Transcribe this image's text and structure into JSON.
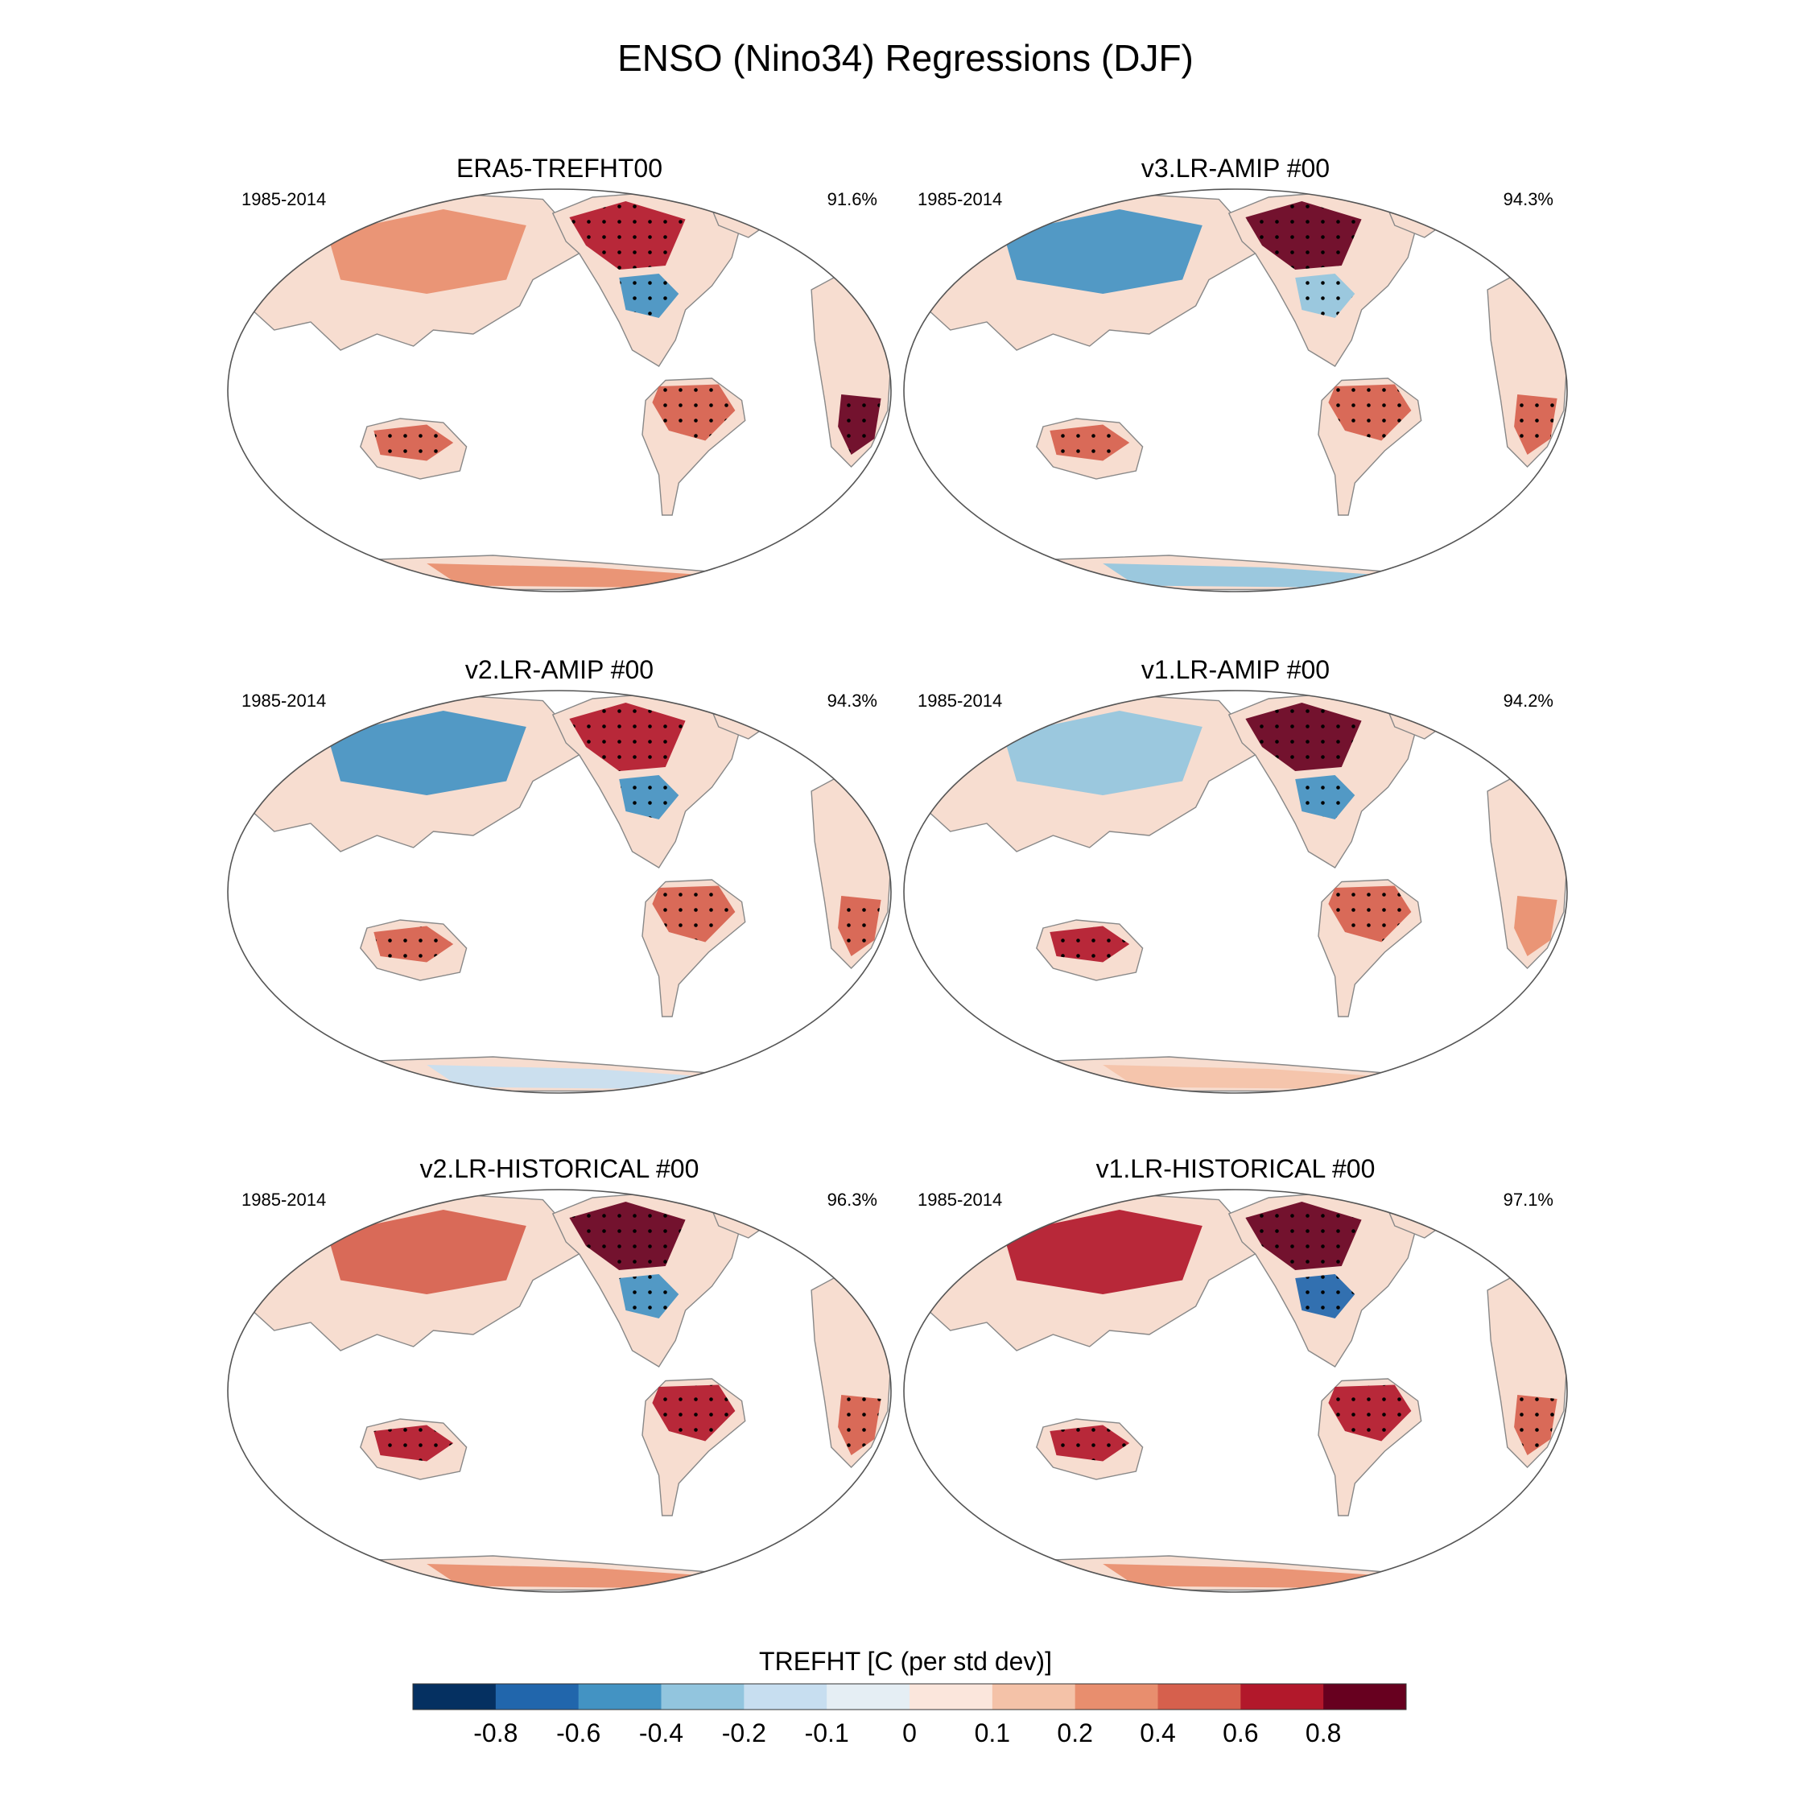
{
  "chart_data": {
    "type": "map",
    "title": "ENSO (Nino34) Regressions (DJF)",
    "projection": "Robinson (Pacific-centered)",
    "panels": [
      {
        "title": "ERA5-TREFHT00",
        "years": "1985-2014",
        "pattern_correlation": "91.6%",
        "regions": [
          {
            "name": "NW North America / Alaska",
            "value": 0.6
          },
          {
            "name": "SE United States",
            "value": -0.6
          },
          {
            "name": "Northern South America",
            "value": 0.4
          },
          {
            "name": "Southeast Africa",
            "value": 0.8
          },
          {
            "name": "Northern Australia",
            "value": 0.4
          },
          {
            "name": "Siberia / Central Asia",
            "value": 0.2
          },
          {
            "name": "Antarctica",
            "value": 0.2
          }
        ]
      },
      {
        "title": "v3.LR-AMIP  #00",
        "years": "1985-2014",
        "pattern_correlation": "94.3%",
        "regions": [
          {
            "name": "NW North America / Alaska",
            "value": 0.8
          },
          {
            "name": "SE United States",
            "value": -0.4
          },
          {
            "name": "Northern South America",
            "value": 0.4
          },
          {
            "name": "Southeast Africa",
            "value": 0.4
          },
          {
            "name": "Northern Australia",
            "value": 0.4
          },
          {
            "name": "Northern Eurasia",
            "value": -0.6
          },
          {
            "name": "Antarctica",
            "value": -0.4
          }
        ]
      },
      {
        "title": "v2.LR-AMIP  #00",
        "years": "1985-2014",
        "pattern_correlation": "94.3%",
        "regions": [
          {
            "name": "NW North America / Alaska",
            "value": 0.6
          },
          {
            "name": "SE United States",
            "value": -0.6
          },
          {
            "name": "Northern South America",
            "value": 0.4
          },
          {
            "name": "Southeast Africa",
            "value": 0.4
          },
          {
            "name": "Northern Australia",
            "value": 0.4
          },
          {
            "name": "East Asia",
            "value": -0.6
          },
          {
            "name": "Antarctica",
            "value": -0.2
          }
        ]
      },
      {
        "title": "v1.LR-AMIP  #00",
        "years": "1985-2014",
        "pattern_correlation": "94.2%",
        "regions": [
          {
            "name": "NW North America / Alaska",
            "value": 0.8
          },
          {
            "name": "SE United States",
            "value": -0.6
          },
          {
            "name": "Northern South America",
            "value": 0.4
          },
          {
            "name": "Southeast Africa",
            "value": 0.2
          },
          {
            "name": "Northern Australia",
            "value": 0.6
          },
          {
            "name": "Northern Eurasia",
            "value": -0.4
          },
          {
            "name": "Antarctica",
            "value": 0.1
          }
        ]
      },
      {
        "title": "v2.LR-HISTORICAL  #00",
        "years": "1985-2014",
        "pattern_correlation": "96.3%",
        "regions": [
          {
            "name": "NW North America / Alaska",
            "value": 0.8
          },
          {
            "name": "SE United States",
            "value": -0.6
          },
          {
            "name": "Northern South America",
            "value": 0.6
          },
          {
            "name": "Southeast Africa",
            "value": 0.4
          },
          {
            "name": "Northern Australia",
            "value": 0.6
          },
          {
            "name": "Siberia / Central Asia",
            "value": 0.4
          },
          {
            "name": "Antarctica",
            "value": 0.2
          }
        ]
      },
      {
        "title": "v1.LR-HISTORICAL  #00",
        "years": "1985-2014",
        "pattern_correlation": "97.1%",
        "regions": [
          {
            "name": "NW North America / Alaska",
            "value": 0.8
          },
          {
            "name": "SE United States",
            "value": -0.8
          },
          {
            "name": "Northern South America",
            "value": 0.6
          },
          {
            "name": "Southeast Africa",
            "value": 0.4
          },
          {
            "name": "Northern Australia",
            "value": 0.6
          },
          {
            "name": "Siberia / Central Asia",
            "value": 0.6
          },
          {
            "name": "Antarctica",
            "value": 0.2
          }
        ]
      }
    ],
    "colorbar": {
      "title": "TREFHT [C (per std dev)]",
      "tick_labels": [
        "-0.8",
        "-0.6",
        "-0.4",
        "-0.2",
        "-0.1",
        "0",
        "0.1",
        "0.2",
        "0.4",
        "0.6",
        "0.8"
      ],
      "colors": [
        "#053061",
        "#2166ac",
        "#4393c3",
        "#92c5de",
        "#c7def0",
        "#e5eef4",
        "#fbe6dc",
        "#f4c2a8",
        "#e88e6e",
        "#d6604d",
        "#b2182b",
        "#67001f"
      ]
    },
    "colors": {
      "land_outline": "#888888",
      "map_border": "#555555",
      "stipple": "#000000"
    }
  }
}
